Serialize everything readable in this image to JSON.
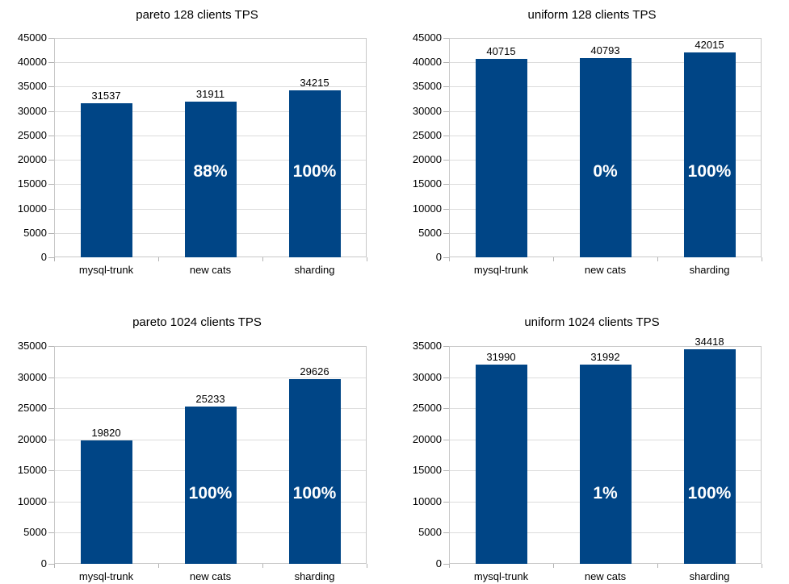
{
  "style": {
    "bar_color": "#004586",
    "annotation_text_color": "#ffffff",
    "text_color": "#000000",
    "gridline_color": "#dcdcdc",
    "axis_color": "#b3b3b3",
    "background": "#ffffff"
  },
  "chart_data": [
    {
      "type": "bar",
      "title": "pareto 128 clients TPS",
      "categories": [
        "mysql-trunk",
        "new cats",
        "sharding"
      ],
      "values": [
        31537,
        31911,
        34215
      ],
      "percent_annotations": [
        "",
        "88%",
        "100%"
      ],
      "annotation_y": 17600,
      "ylim": [
        0,
        45000
      ],
      "ytick_step": 5000,
      "grid": "horizontal",
      "legend": "none",
      "xlabel": "",
      "ylabel": ""
    },
    {
      "type": "bar",
      "title": "uniform 128 clients TPS",
      "categories": [
        "mysql-trunk",
        "new cats",
        "sharding"
      ],
      "values": [
        40715,
        40793,
        42015
      ],
      "percent_annotations": [
        "",
        "0%",
        "100%"
      ],
      "annotation_y": 17600,
      "ylim": [
        0,
        45000
      ],
      "ytick_step": 5000,
      "grid": "horizontal",
      "legend": "none",
      "xlabel": "",
      "ylabel": ""
    },
    {
      "type": "bar",
      "title": "pareto 1024 clients TPS",
      "categories": [
        "mysql-trunk",
        "new cats",
        "sharding"
      ],
      "values": [
        19820,
        25233,
        29626
      ],
      "percent_annotations": [
        "",
        "100%",
        "100%"
      ],
      "annotation_y": 11300,
      "ylim": [
        0,
        35000
      ],
      "ytick_step": 5000,
      "grid": "horizontal",
      "legend": "none",
      "xlabel": "",
      "ylabel": ""
    },
    {
      "type": "bar",
      "title": "uniform 1024 clients TPS",
      "categories": [
        "mysql-trunk",
        "new cats",
        "sharding"
      ],
      "values": [
        31990,
        31992,
        34418
      ],
      "percent_annotations": [
        "",
        "1%",
        "100%"
      ],
      "annotation_y": 11300,
      "ylim": [
        0,
        35000
      ],
      "ytick_step": 5000,
      "grid": "horizontal",
      "legend": "none",
      "xlabel": "",
      "ylabel": ""
    }
  ]
}
